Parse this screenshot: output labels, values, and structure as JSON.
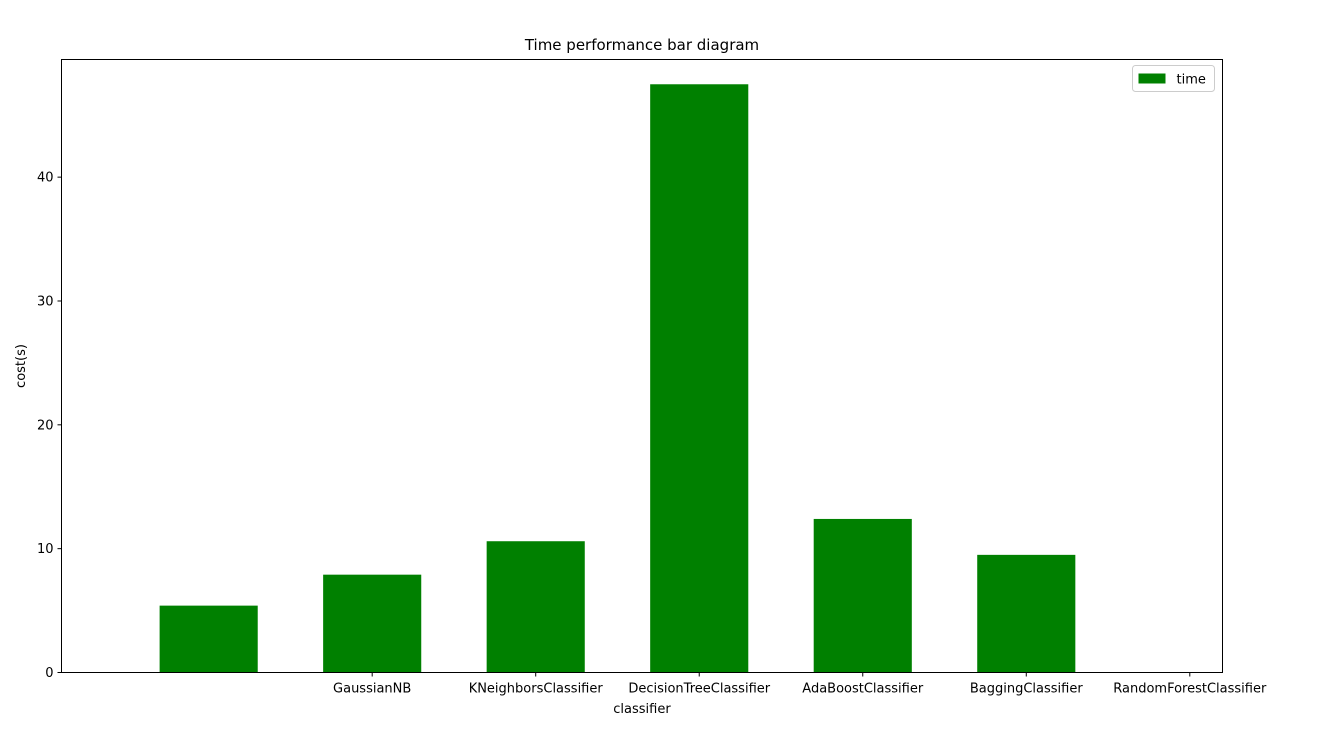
{
  "chart_data": {
    "type": "bar",
    "title": "Time performance bar diagram",
    "xlabel": "classifier",
    "ylabel": "cost(s)",
    "categories": [
      "GaussianNB",
      "KNeighborsClassifier",
      "DecisionTreeClassifier",
      "AdaBoostClassifier",
      "BaggingClassifier",
      "RandomForestClassifier"
    ],
    "series": [
      {
        "name": "time",
        "values": [
          5.4,
          7.9,
          10.6,
          47.5,
          12.4,
          9.5
        ]
      }
    ],
    "ylim": [
      0,
      49.5
    ],
    "yticks": [
      0,
      10,
      20,
      30,
      40
    ],
    "legend_position": "top-right",
    "grid": false,
    "colors": {
      "bar": "#008000",
      "axis": "#000000",
      "background": "#ffffff"
    }
  }
}
